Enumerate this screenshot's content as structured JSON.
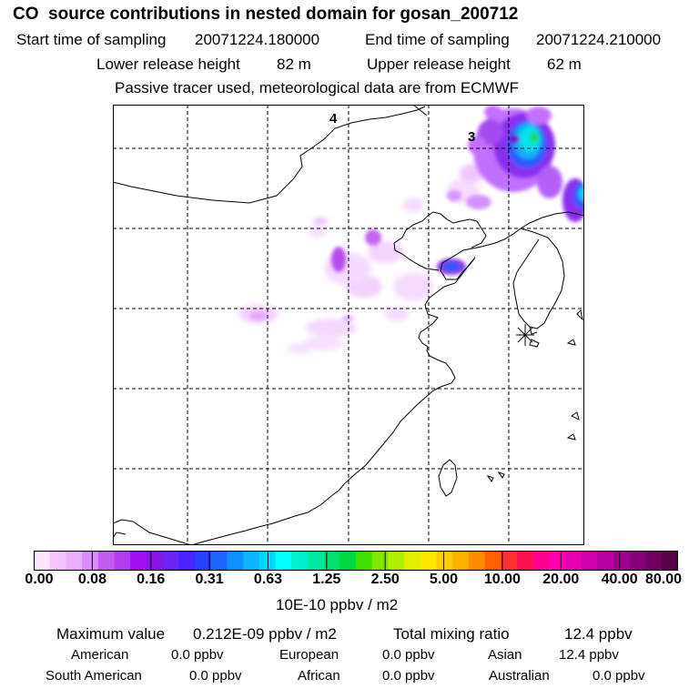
{
  "header": {
    "title": "CO  source contributions in nested domain for gosan_200712",
    "start_label": "Start time of sampling",
    "start_value": "20071224.180000",
    "end_label": "End time of sampling",
    "end_value": "20071224.210000",
    "lower_label": "Lower release height",
    "lower_value": "82 m",
    "upper_label": "Upper release height",
    "upper_value": "62 m",
    "note": "Passive tracer used, meteorological data are from ECMWF"
  },
  "map": {
    "labels": [
      "4",
      "3"
    ],
    "release_marker": "release-site-asterisk"
  },
  "colorbar": {
    "ticks": [
      "0.00",
      "0.08",
      "0.16",
      "0.31",
      "0.63",
      "1.25",
      "2.50",
      "5.00",
      "10.00",
      "20.00",
      "40.00",
      "80.00"
    ],
    "colors": [
      "#ffe6ff",
      "#f5c4ff",
      "#eab0ff",
      "#dd8cff",
      "#c25cf0",
      "#b43cf0",
      "#a010f0",
      "#8a14e8",
      "#6a24f4",
      "#4a24ff",
      "#2a40ff",
      "#1e64ff",
      "#1090ff",
      "#10b4ff",
      "#00d6ff",
      "#00ffff",
      "#00f0d0",
      "#00e8a0",
      "#00e070",
      "#00d840",
      "#40e000",
      "#80e800",
      "#b0f000",
      "#e0f000",
      "#ffe800",
      "#ffcc00",
      "#ffb000",
      "#ff8c00",
      "#ff6000",
      "#ff3030",
      "#ff1050",
      "#ff0090",
      "#ff00b0",
      "#e800b0",
      "#d000b0",
      "#b800a0",
      "#a00090",
      "#880078",
      "#700060",
      "#580048"
    ],
    "units": "10E-10 ppbv / m2"
  },
  "stats": {
    "max_label": "Maximum value",
    "max_value": "0.212E-09 ppbv / m2",
    "total_label": "Total mixing ratio",
    "total_value": "12.4 ppbv",
    "american_label": "American",
    "american_value": "0.0 ppbv",
    "european_label": "European",
    "european_value": "0.0 ppbv",
    "asian_label": "Asian",
    "asian_value": "12.4 ppbv",
    "south_american_label": "South American",
    "south_american_value": "0.0 ppbv",
    "african_label": "African",
    "african_value": "0.0 ppbv",
    "australian_label": "Australian",
    "australian_value": "0.0 ppbv"
  }
}
